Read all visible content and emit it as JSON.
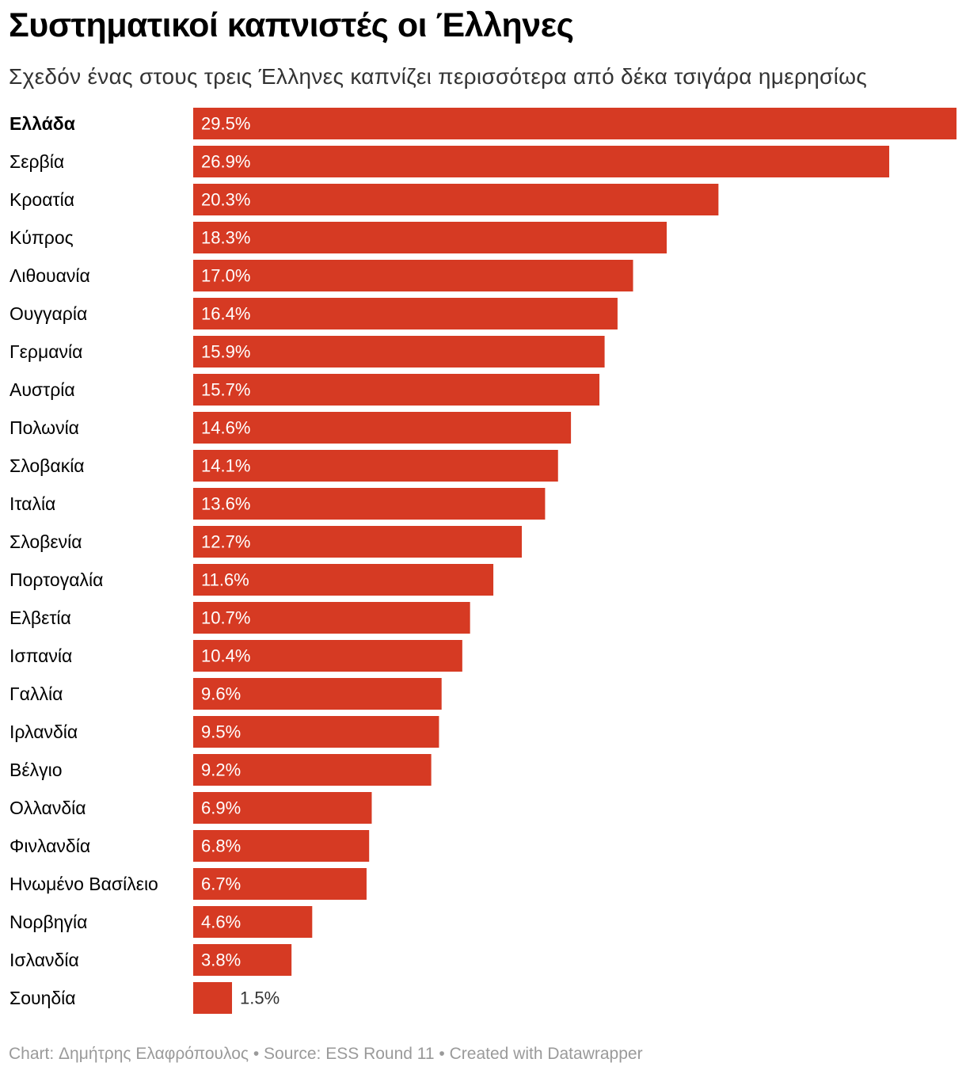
{
  "header": {
    "title": "Συστηματικοί καπνιστές οι Έλληνες",
    "subtitle": "Σχεδόν ένας στους τρεις Έλληνες καπνίζει περισσότερα από δέκα τσιγάρα ημερησίως"
  },
  "footer": {
    "credit": "Chart: Δημήτρης Ελαφρόπουλος • Source: ESS Round 11 • Created with Datawrapper"
  },
  "colors": {
    "bar": "#d63a23",
    "label_inside": "#ffffff",
    "label_outside": "#333333",
    "category": "#000000"
  },
  "chart_data": {
    "type": "bar",
    "orientation": "horizontal",
    "title": "Συστηματικοί καπνιστές οι Έλληνες",
    "subtitle": "Σχεδόν ένας στους τρεις Έλληνες καπνίζει περισσότερα από δέκα τσιγάρα ημερησίως",
    "xlabel": "",
    "ylabel": "",
    "xlim": [
      0,
      29.5
    ],
    "grid": false,
    "legend": "none",
    "highlighted_category": "Ελλάδα",
    "categories": [
      "Ελλάδα",
      "Σερβία",
      "Κροατία",
      "Κύπρος",
      "Λιθουανία",
      "Ουγγαρία",
      "Γερμανία",
      "Αυστρία",
      "Πολωνία",
      "Σλοβακία",
      "Ιταλία",
      "Σλοβενία",
      "Πορτογαλία",
      "Ελβετία",
      "Ισπανία",
      "Γαλλία",
      "Ιρλανδία",
      "Βέλγιο",
      "Ολλανδία",
      "Φινλανδία",
      "Ηνωμένο Βασίλειο",
      "Νορβηγία",
      "Ισλανδία",
      "Σουηδία"
    ],
    "values": [
      29.5,
      26.9,
      20.3,
      18.3,
      17.0,
      16.4,
      15.9,
      15.7,
      14.6,
      14.1,
      13.6,
      12.7,
      11.6,
      10.7,
      10.4,
      9.6,
      9.5,
      9.2,
      6.9,
      6.8,
      6.7,
      4.6,
      3.8,
      1.5
    ],
    "value_labels": [
      "29.5%",
      "26.9%",
      "20.3%",
      "18.3%",
      "17.0%",
      "16.4%",
      "15.9%",
      "15.7%",
      "14.6%",
      "14.1%",
      "13.6%",
      "12.7%",
      "11.6%",
      "10.7%",
      "10.4%",
      "9.6%",
      "9.5%",
      "9.2%",
      "6.9%",
      "6.8%",
      "6.7%",
      "4.6%",
      "3.8%",
      "1.5%"
    ]
  }
}
